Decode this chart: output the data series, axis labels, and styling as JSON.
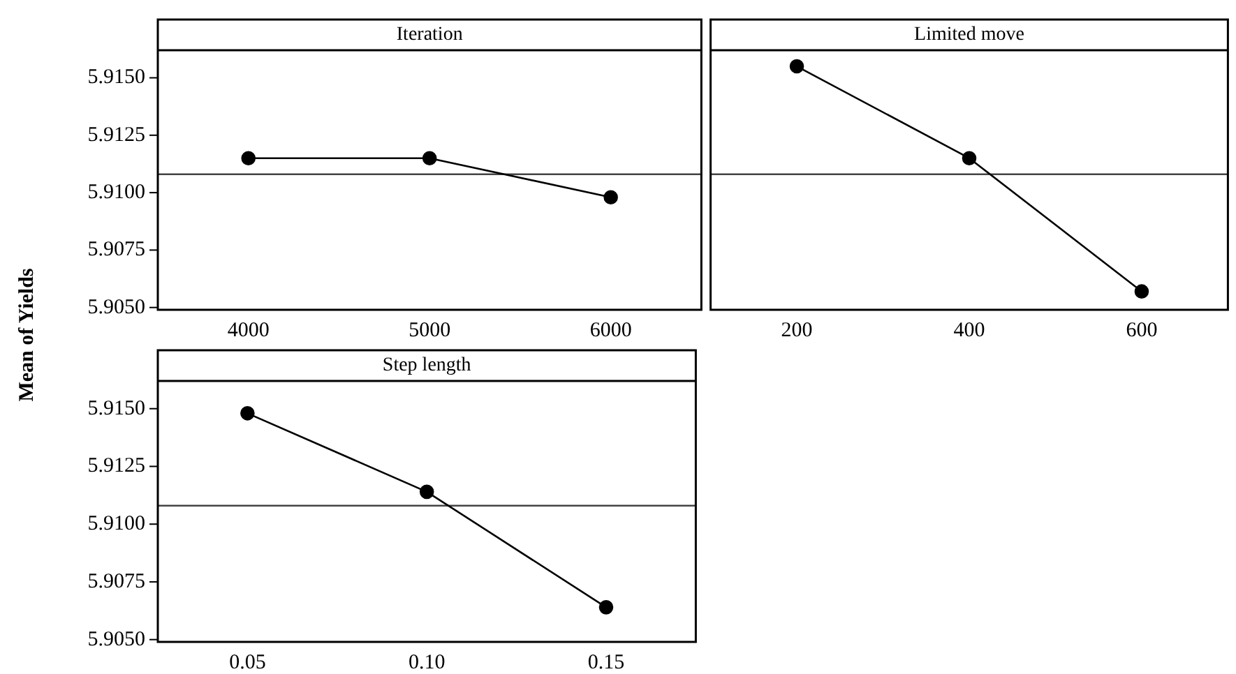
{
  "chart_data": [
    {
      "type": "line",
      "title": "Iteration",
      "ylabel": "Mean of Yields",
      "x": [
        4000,
        5000,
        6000
      ],
      "values": [
        5.9115,
        5.9115,
        5.9098
      ],
      "color": "#000000",
      "marker": "circle",
      "line_style": "solid",
      "xlim": [
        3500,
        6500
      ],
      "xticks": [
        4000,
        5000,
        6000
      ],
      "ylim": [
        5.9049,
        5.9162
      ],
      "yticks": [
        {
          "value": 5.905,
          "label": "5.9050"
        },
        {
          "value": 5.9075,
          "label": "5.9075"
        },
        {
          "value": 5.91,
          "label": "5.9100"
        },
        {
          "value": 5.9125,
          "label": "5.9125"
        },
        {
          "value": 5.915,
          "label": "5.9150"
        }
      ],
      "ref_lines": [
        {
          "axis": "y",
          "value": 5.9108,
          "color": "#444444"
        }
      ]
    },
    {
      "type": "line",
      "title": "Limited move",
      "x": [
        200,
        400,
        600
      ],
      "values": [
        5.9155,
        5.9115,
        5.9057
      ],
      "color": "#000000",
      "marker": "circle",
      "line_style": "solid",
      "xlim": [
        100,
        700
      ],
      "xticks": [
        200,
        400,
        600
      ],
      "ylim": [
        5.9049,
        5.9162
      ],
      "tick_labels": "x",
      "ref_lines": [
        {
          "axis": "y",
          "value": 5.9108,
          "color": "#444444"
        }
      ]
    },
    {
      "type": "line",
      "title": "Step length",
      "x": [
        0.05,
        0.1,
        0.15
      ],
      "values": [
        5.9148,
        5.9114,
        5.9064
      ],
      "color": "#000000",
      "marker": "circle",
      "line_style": "solid",
      "xlim": [
        0.025,
        0.175
      ],
      "xticks": [
        {
          "value": 0.05,
          "label": "0.05"
        },
        {
          "value": 0.1,
          "label": "0.10"
        },
        {
          "value": 0.15,
          "label": "0.15"
        }
      ],
      "ylim": [
        5.9049,
        5.9162
      ],
      "yticks": [
        {
          "value": 5.905,
          "label": "5.9050"
        },
        {
          "value": 5.9075,
          "label": "5.9075"
        },
        {
          "value": 5.91,
          "label": "5.9100"
        },
        {
          "value": 5.9125,
          "label": "5.9125"
        },
        {
          "value": 5.915,
          "label": "5.9150"
        }
      ],
      "ref_lines": [
        {
          "axis": "y",
          "value": 5.9108,
          "color": "#444444"
        }
      ]
    }
  ]
}
